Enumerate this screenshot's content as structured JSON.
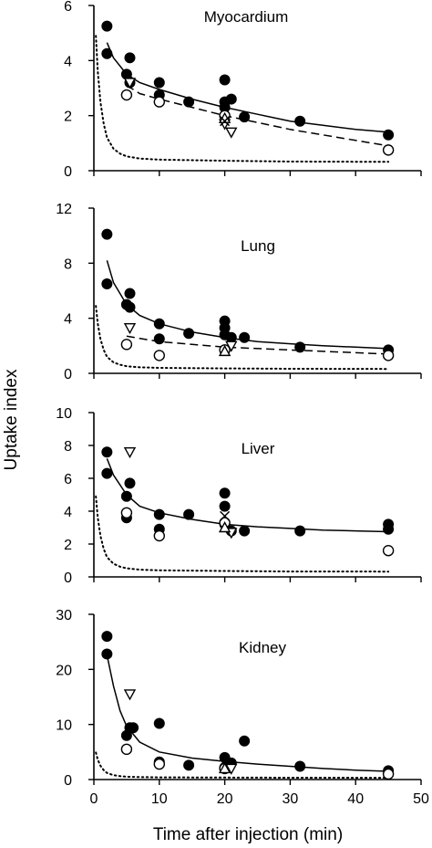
{
  "figure": {
    "ylabel": "Uptake index",
    "xlabel": "Time after injection (min)",
    "x_ticks": [
      "0",
      "10",
      "20",
      "30",
      "40",
      "50"
    ]
  },
  "chart_data": [
    {
      "type": "scatter",
      "title": "Myocardium",
      "xlim": [
        0,
        50
      ],
      "ylim": [
        0,
        6
      ],
      "y_ticks": [
        "0",
        "2",
        "4",
        "6"
      ],
      "series": [
        {
          "marker": "filled-circle",
          "points": [
            [
              2,
              5.25
            ],
            [
              2,
              4.25
            ],
            [
              5,
              3.5
            ],
            [
              5.5,
              4.1
            ],
            [
              5.5,
              3.2
            ],
            [
              10,
              3.2
            ],
            [
              10,
              2.75
            ],
            [
              14.5,
              2.5
            ],
            [
              20,
              3.3
            ],
            [
              20,
              2.5
            ],
            [
              20,
              2.3
            ],
            [
              21,
              2.6
            ],
            [
              23,
              1.95
            ],
            [
              31.5,
              1.8
            ],
            [
              45,
              1.3
            ]
          ]
        },
        {
          "marker": "open-circle",
          "points": [
            [
              5,
              2.75
            ],
            [
              10,
              2.5
            ],
            [
              20,
              2.0
            ],
            [
              45,
              0.75
            ]
          ]
        },
        {
          "marker": "open-triangle-down",
          "points": [
            [
              5.5,
              3.2
            ],
            [
              20,
              1.7
            ],
            [
              21,
              1.4
            ]
          ]
        },
        {
          "marker": "open-triangle-up",
          "points": [
            [
              20,
              1.9
            ]
          ]
        },
        {
          "marker": "x-cross",
          "points": [
            [
              20,
              1.8
            ]
          ]
        },
        {
          "style": "solid-line",
          "points": [
            [
              2,
              4.65
            ],
            [
              3,
              4.1
            ],
            [
              5,
              3.5
            ],
            [
              7,
              3.2
            ],
            [
              10,
              2.95
            ],
            [
              15,
              2.6
            ],
            [
              20,
              2.3
            ],
            [
              25,
              2.05
            ],
            [
              30,
              1.8
            ],
            [
              35,
              1.65
            ],
            [
              40,
              1.5
            ],
            [
              45,
              1.4
            ]
          ]
        },
        {
          "style": "dashed-line",
          "points": [
            [
              5,
              3.1
            ],
            [
              7,
              2.8
            ],
            [
              10,
              2.6
            ],
            [
              15,
              2.3
            ],
            [
              20,
              2.0
            ],
            [
              25,
              1.75
            ],
            [
              30,
              1.5
            ],
            [
              35,
              1.3
            ],
            [
              40,
              1.1
            ],
            [
              45,
              0.9
            ]
          ]
        },
        {
          "style": "dotted-line",
          "points": [
            [
              0.3,
              4.9
            ],
            [
              0.6,
              3.6
            ],
            [
              1,
              2.5
            ],
            [
              1.5,
              1.7
            ],
            [
              2,
              1.2
            ],
            [
              3,
              0.8
            ],
            [
              4,
              0.62
            ],
            [
              5,
              0.52
            ],
            [
              7,
              0.44
            ],
            [
              10,
              0.4
            ],
            [
              20,
              0.36
            ],
            [
              30,
              0.33
            ],
            [
              45,
              0.32
            ]
          ]
        }
      ]
    },
    {
      "type": "scatter",
      "title": "Lung",
      "xlim": [
        0,
        50
      ],
      "ylim": [
        0,
        12
      ],
      "y_ticks": [
        "0",
        "4",
        "8",
        "12"
      ],
      "series": [
        {
          "marker": "filled-circle",
          "points": [
            [
              2,
              10.1
            ],
            [
              2,
              6.5
            ],
            [
              5,
              5.0
            ],
            [
              5.5,
              5.8
            ],
            [
              5.5,
              4.8
            ],
            [
              10,
              3.6
            ],
            [
              10,
              2.5
            ],
            [
              14.5,
              2.9
            ],
            [
              20,
              3.8
            ],
            [
              20,
              3.3
            ],
            [
              20,
              2.8
            ],
            [
              21,
              2.6
            ],
            [
              23,
              2.6
            ],
            [
              31.5,
              1.9
            ],
            [
              45,
              1.7
            ]
          ]
        },
        {
          "marker": "open-circle",
          "points": [
            [
              5,
              2.1
            ],
            [
              10,
              1.3
            ],
            [
              20,
              1.7
            ],
            [
              45,
              1.3
            ]
          ]
        },
        {
          "marker": "open-triangle-down",
          "points": [
            [
              5.5,
              3.3
            ],
            [
              21,
              2.0
            ]
          ]
        },
        {
          "marker": "open-triangle-up",
          "points": [
            [
              20,
              1.6
            ]
          ]
        },
        {
          "style": "solid-line",
          "points": [
            [
              2,
              8.2
            ],
            [
              3,
              6.6
            ],
            [
              5,
              5.0
            ],
            [
              7,
              4.2
            ],
            [
              10,
              3.6
            ],
            [
              15,
              3.0
            ],
            [
              20,
              2.6
            ],
            [
              25,
              2.3
            ],
            [
              30,
              2.15
            ],
            [
              35,
              2.0
            ],
            [
              40,
              1.9
            ],
            [
              45,
              1.8
            ]
          ]
        },
        {
          "style": "dashed-line",
          "points": [
            [
              5,
              2.7
            ],
            [
              10,
              2.3
            ],
            [
              15,
              2.1
            ],
            [
              20,
              1.9
            ],
            [
              30,
              1.7
            ],
            [
              45,
              1.4
            ]
          ]
        },
        {
          "style": "dotted-line",
          "points": [
            [
              0.3,
              4.9
            ],
            [
              0.6,
              3.6
            ],
            [
              1,
              2.5
            ],
            [
              1.5,
              1.7
            ],
            [
              2,
              1.2
            ],
            [
              3,
              0.8
            ],
            [
              4,
              0.62
            ],
            [
              5,
              0.52
            ],
            [
              7,
              0.44
            ],
            [
              10,
              0.4
            ],
            [
              20,
              0.36
            ],
            [
              30,
              0.33
            ],
            [
              45,
              0.32
            ]
          ]
        }
      ]
    },
    {
      "type": "scatter",
      "title": "Liver",
      "xlim": [
        0,
        50
      ],
      "ylim": [
        0,
        10
      ],
      "y_ticks": [
        "0",
        "2",
        "4",
        "6",
        "8",
        "10"
      ],
      "series": [
        {
          "marker": "filled-circle",
          "points": [
            [
              2,
              7.6
            ],
            [
              2,
              6.3
            ],
            [
              5,
              4.9
            ],
            [
              5,
              3.6
            ],
            [
              5.5,
              5.7
            ],
            [
              10,
              3.8
            ],
            [
              10,
              2.9
            ],
            [
              14.5,
              3.8
            ],
            [
              20,
              5.1
            ],
            [
              20,
              4.3
            ],
            [
              20,
              3.2
            ],
            [
              21,
              2.8
            ],
            [
              23,
              2.8
            ],
            [
              31.5,
              2.8
            ],
            [
              45,
              3.2
            ],
            [
              45,
              2.9
            ]
          ]
        },
        {
          "marker": "open-circle",
          "points": [
            [
              5,
              3.9
            ],
            [
              10,
              2.5
            ],
            [
              20,
              3.3
            ],
            [
              45,
              1.6
            ]
          ]
        },
        {
          "marker": "open-triangle-down",
          "points": [
            [
              5.5,
              7.6
            ],
            [
              21,
              2.7
            ]
          ]
        },
        {
          "marker": "open-triangle-up",
          "points": [
            [
              20,
              3.0
            ]
          ]
        },
        {
          "marker": "x-cross",
          "points": [
            [
              20,
              3.7
            ]
          ]
        },
        {
          "style": "solid-line",
          "points": [
            [
              2,
              7.2
            ],
            [
              3,
              6.2
            ],
            [
              5,
              5.0
            ],
            [
              7,
              4.3
            ],
            [
              10,
              3.9
            ],
            [
              15,
              3.5
            ],
            [
              20,
              3.2
            ],
            [
              25,
              3.05
            ],
            [
              30,
              2.95
            ],
            [
              35,
              2.85
            ],
            [
              40,
              2.8
            ],
            [
              45,
              2.75
            ]
          ]
        },
        {
          "style": "dotted-line",
          "points": [
            [
              0.3,
              4.9
            ],
            [
              0.6,
              3.6
            ],
            [
              1,
              2.5
            ],
            [
              1.5,
              1.7
            ],
            [
              2,
              1.2
            ],
            [
              3,
              0.8
            ],
            [
              4,
              0.62
            ],
            [
              5,
              0.52
            ],
            [
              7,
              0.44
            ],
            [
              10,
              0.4
            ],
            [
              20,
              0.36
            ],
            [
              30,
              0.33
            ],
            [
              45,
              0.32
            ]
          ]
        }
      ]
    },
    {
      "type": "scatter",
      "title": "Kidney",
      "xlim": [
        0,
        50
      ],
      "ylim": [
        0,
        30
      ],
      "y_ticks": [
        "0",
        "10",
        "20",
        "30"
      ],
      "series": [
        {
          "marker": "filled-circle",
          "points": [
            [
              2,
              26.0
            ],
            [
              2,
              22.8
            ],
            [
              5,
              8.0
            ],
            [
              5.5,
              9.4
            ],
            [
              6,
              9.4
            ],
            [
              10,
              10.2
            ],
            [
              10,
              3.2
            ],
            [
              14.5,
              2.6
            ],
            [
              20,
              4.0
            ],
            [
              20,
              2.2
            ],
            [
              21,
              3.0
            ],
            [
              23,
              7.0
            ],
            [
              31.5,
              2.4
            ],
            [
              45,
              1.6
            ]
          ]
        },
        {
          "marker": "open-circle",
          "points": [
            [
              5,
              5.5
            ],
            [
              10,
              2.8
            ],
            [
              20,
              2.0
            ],
            [
              45,
              1.0
            ]
          ]
        },
        {
          "marker": "open-triangle-down",
          "points": [
            [
              5.5,
              15.5
            ],
            [
              21,
              2.0
            ]
          ]
        },
        {
          "marker": "open-triangle-up",
          "points": [
            [
              20,
              2.0
            ]
          ]
        },
        {
          "style": "solid-line",
          "points": [
            [
              2,
              22.6
            ],
            [
              3,
              17.0
            ],
            [
              4,
              12.5
            ],
            [
              5,
              9.7
            ],
            [
              7,
              6.8
            ],
            [
              10,
              5.0
            ],
            [
              15,
              3.9
            ],
            [
              20,
              3.3
            ],
            [
              25,
              2.8
            ],
            [
              30,
              2.4
            ],
            [
              35,
              2.0
            ],
            [
              40,
              1.7
            ],
            [
              45,
              1.5
            ]
          ]
        },
        {
          "style": "dotted-line",
          "points": [
            [
              0.3,
              4.9
            ],
            [
              0.6,
              3.6
            ],
            [
              1,
              2.5
            ],
            [
              1.5,
              1.7
            ],
            [
              2,
              1.2
            ],
            [
              3,
              0.8
            ],
            [
              4,
              0.62
            ],
            [
              5,
              0.52
            ],
            [
              7,
              0.44
            ],
            [
              10,
              0.4
            ],
            [
              20,
              0.36
            ],
            [
              30,
              0.33
            ],
            [
              45,
              0.32
            ]
          ]
        }
      ]
    }
  ]
}
